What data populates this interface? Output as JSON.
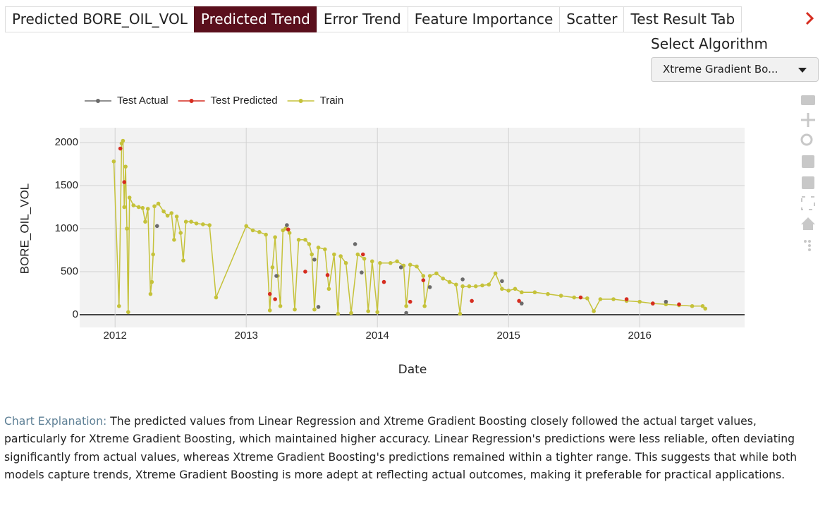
{
  "tabs": {
    "items": [
      "Predicted BORE_OIL_VOL",
      "Predicted Trend",
      "Error Trend",
      "Feature Importance",
      "Scatter",
      "Test Result Tab"
    ],
    "active": 1
  },
  "select": {
    "label": "Select Algorithm",
    "value": "Xtreme Gradient Bo..."
  },
  "chart_data": {
    "type": "line",
    "xlabel": "Date",
    "ylabel": "BORE_OIL_VOL",
    "xlim": [
      2011.73,
      2016.8
    ],
    "xticks": [
      2012,
      2013,
      2014,
      2015,
      2016
    ],
    "ylim": [
      -148,
      2172
    ],
    "yticks": [
      0,
      500,
      1000,
      1500,
      2000
    ],
    "grid": true,
    "series": [
      {
        "name": "Test Actual",
        "color": "#6b6b6b",
        "mode": "markers",
        "x": [
          2012.32,
          2013.23,
          2013.31,
          2013.52,
          2013.55,
          2013.83,
          2013.88,
          2014.18,
          2014.22,
          2014.4,
          2014.65,
          2014.95,
          2015.1,
          2016.2
        ],
        "values": [
          1030,
          450,
          1040,
          640,
          90,
          820,
          490,
          550,
          20,
          320,
          410,
          390,
          130,
          150
        ]
      },
      {
        "name": "Test Predicted",
        "color": "#d62d20",
        "mode": "markers",
        "x": [
          2012.04,
          2012.07,
          2013.18,
          2013.22,
          2013.32,
          2013.45,
          2013.62,
          2013.89,
          2014.05,
          2014.25,
          2014.35,
          2014.72,
          2015.08,
          2015.55,
          2015.9,
          2016.1,
          2016.3
        ],
        "values": [
          1930,
          1540,
          240,
          180,
          990,
          500,
          460,
          700,
          380,
          150,
          400,
          160,
          160,
          200,
          180,
          130,
          120
        ]
      },
      {
        "name": "Train",
        "color": "#c5c23a",
        "mode": "lines+markers",
        "x": [
          2011.99,
          2012.03,
          2012.05,
          2012.06,
          2012.07,
          2012.08,
          2012.09,
          2012.1,
          2012.11,
          2012.14,
          2012.18,
          2012.21,
          2012.23,
          2012.25,
          2012.27,
          2012.28,
          2012.29,
          2012.3,
          2012.33,
          2012.37,
          2012.4,
          2012.43,
          2012.45,
          2012.47,
          2012.5,
          2012.52,
          2012.54,
          2012.58,
          2012.62,
          2012.67,
          2012.72,
          2012.77,
          2013.0,
          2013.05,
          2013.1,
          2013.15,
          2013.18,
          2013.2,
          2013.22,
          2013.24,
          2013.26,
          2013.28,
          2013.3,
          2013.33,
          2013.37,
          2013.4,
          2013.45,
          2013.48,
          2013.5,
          2013.52,
          2013.55,
          2013.6,
          2013.63,
          2013.67,
          2013.7,
          2013.72,
          2013.76,
          2013.8,
          2013.85,
          2013.9,
          2013.93,
          2013.96,
          2014.0,
          2014.02,
          2014.1,
          2014.15,
          2014.2,
          2014.22,
          2014.25,
          2014.3,
          2014.35,
          2014.36,
          2014.4,
          2014.45,
          2014.5,
          2014.55,
          2014.6,
          2014.63,
          2014.65,
          2014.7,
          2014.75,
          2014.8,
          2014.85,
          2014.9,
          2014.95,
          2015.0,
          2015.05,
          2015.1,
          2015.2,
          2015.3,
          2015.4,
          2015.5,
          2015.6,
          2015.65,
          2015.7,
          2015.8,
          2015.9,
          2016.0,
          2016.1,
          2016.2,
          2016.3,
          2016.4,
          2016.48,
          2016.5
        ],
        "values": [
          1780,
          100,
          1990,
          2020,
          1250,
          1720,
          1000,
          30,
          1360,
          1270,
          1250,
          1240,
          1080,
          1230,
          240,
          380,
          700,
          1260,
          1290,
          1200,
          1150,
          1180,
          870,
          1140,
          950,
          630,
          1080,
          1080,
          1060,
          1050,
          1040,
          200,
          1030,
          980,
          960,
          930,
          50,
          550,
          900,
          450,
          100,
          980,
          1000,
          950,
          60,
          870,
          870,
          820,
          700,
          60,
          780,
          760,
          300,
          700,
          10,
          680,
          600,
          20,
          700,
          650,
          40,
          620,
          30,
          600,
          600,
          620,
          570,
          100,
          580,
          560,
          450,
          100,
          450,
          480,
          420,
          380,
          350,
          10,
          330,
          330,
          330,
          340,
          350,
          480,
          300,
          280,
          300,
          260,
          260,
          240,
          220,
          200,
          190,
          40,
          180,
          180,
          160,
          150,
          130,
          120,
          110,
          100,
          100,
          70
        ]
      }
    ]
  },
  "explanation": {
    "label": "Chart Explanation:",
    "text": "The predicted values from Linear Regression and Xtreme Gradient Boosting closely followed the actual target values, particularly for Xtreme Gradient Boosting, which maintained higher accuracy. Linear Regression's predictions were less reliable, often deviating significantly from actual values, whereas Xtreme Gradient Boosting's predictions remained within a tighter range. This suggests that while both models capture trends, Xtreme Gradient Boosting is more adept at reflecting actual outcomes, making it preferable for practical applications."
  }
}
